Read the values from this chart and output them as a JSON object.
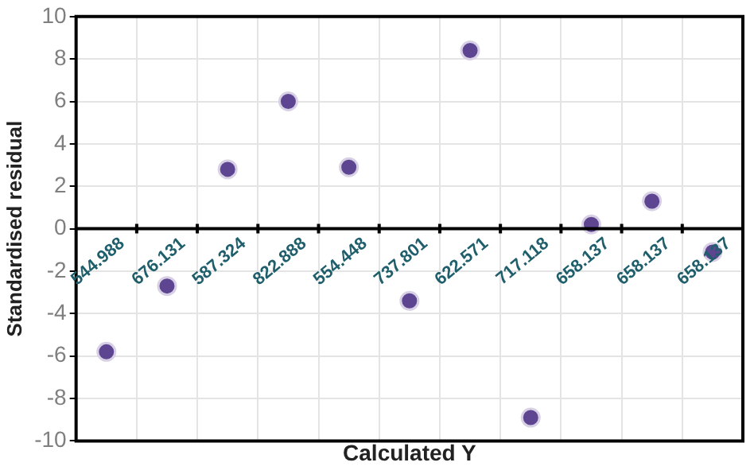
{
  "chart_data": {
    "type": "scatter",
    "xlabel": "Calculated Y",
    "ylabel": "Standardised residual",
    "categories": [
      "544.988",
      "676.131",
      "587.324",
      "822.888",
      "554.448",
      "737.801",
      "622.571",
      "717.118",
      "658.137",
      "658.137",
      "658.137"
    ],
    "series": [
      {
        "color": "#5e4591",
        "values": [
          -5.8,
          -2.7,
          2.8,
          6.0,
          2.9,
          -3.4,
          8.4,
          -8.9,
          0.2,
          1.3,
          -1.1
        ]
      }
    ],
    "ylim": [
      -10,
      10
    ],
    "yticks": [
      -10,
      -8,
      -6,
      -4,
      -2,
      0,
      2,
      4,
      6,
      8,
      10
    ],
    "grid": true,
    "legend": false,
    "marker": "circle"
  }
}
